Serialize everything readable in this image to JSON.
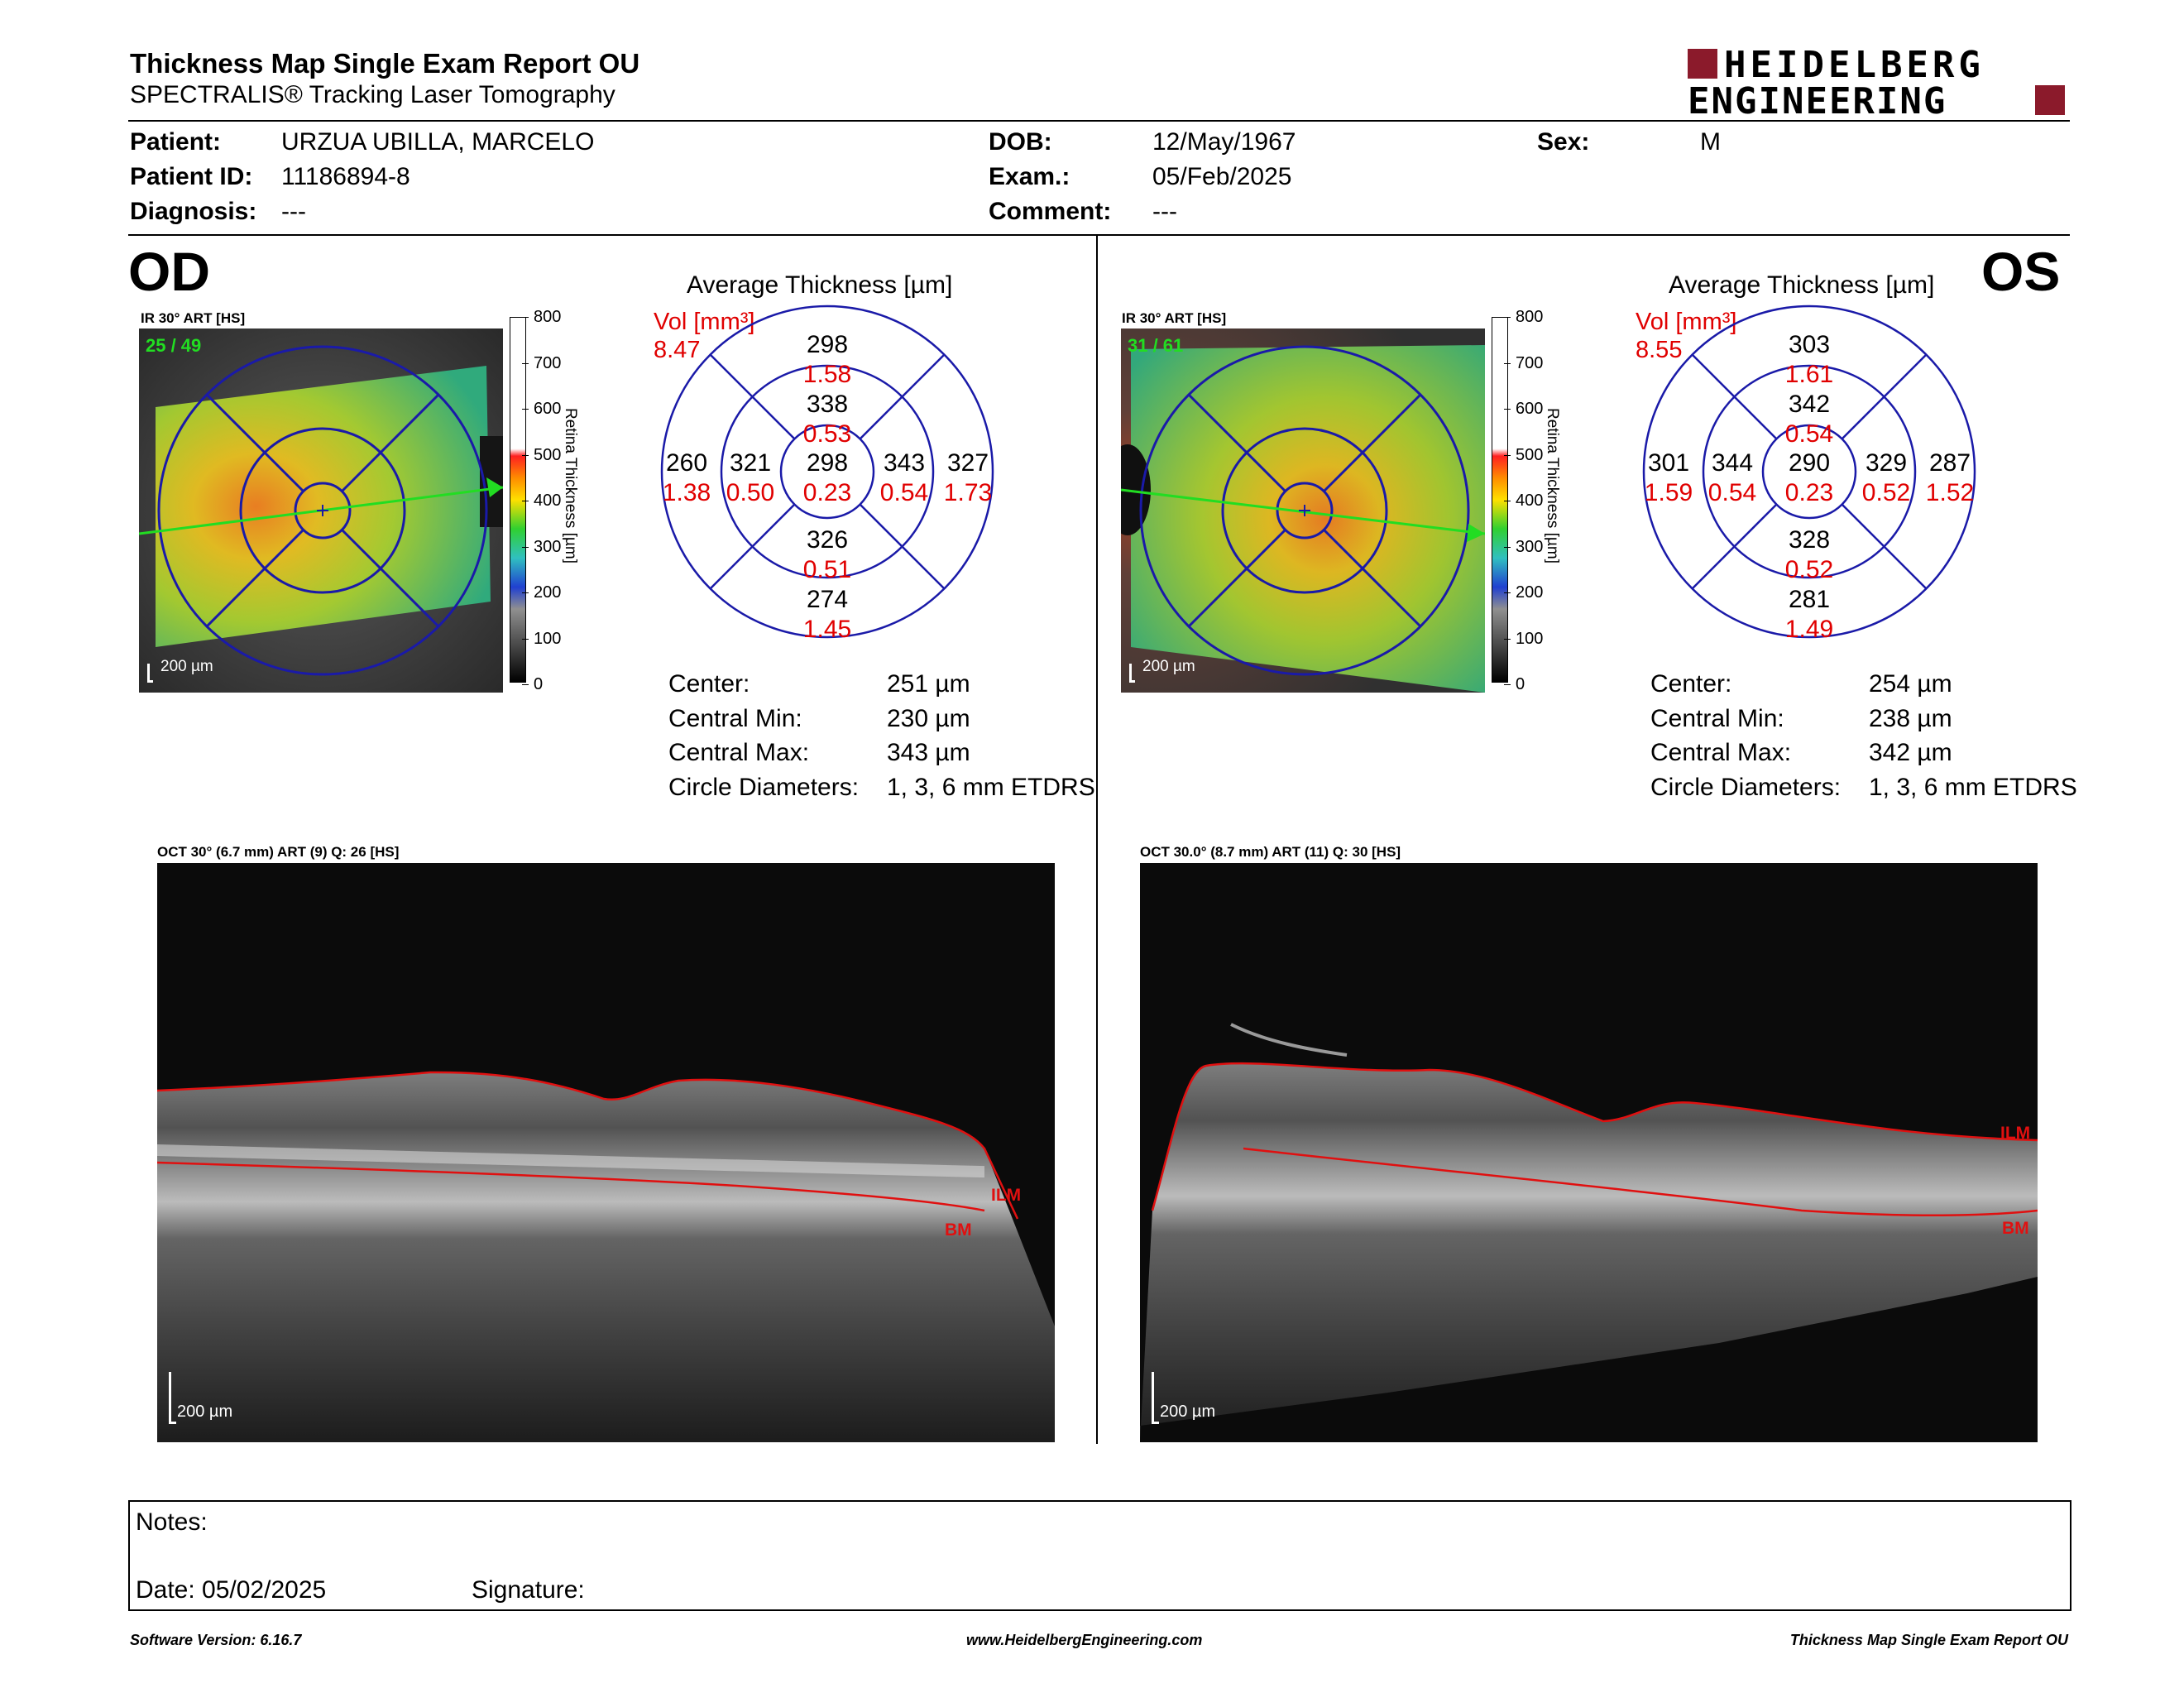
{
  "header": {
    "title": "Thickness Map Single Exam Report OU",
    "subtitle": "SPECTRALIS® Tracking Laser Tomography",
    "logo_line1": "HEIDELBERG",
    "logo_line2": "ENGINEERING",
    "logo_color": "#8b1a2b"
  },
  "patient": {
    "patient_label": "Patient:",
    "patient_value": "URZUA UBILLA, MARCELO",
    "id_label": "Patient ID:",
    "id_value": "11186894-8",
    "diag_label": "Diagnosis:",
    "diag_value": "---",
    "dob_label": "DOB:",
    "dob_value": "12/May/1967",
    "exam_label": "Exam.:",
    "exam_value": "05/Feb/2025",
    "comment_label": "Comment:",
    "comment_value": "---",
    "sex_label": "Sex:",
    "sex_value": "M"
  },
  "od": {
    "eye": "OD",
    "ir_label": "IR 30° ART [HS]",
    "frames": "25 / 49",
    "scale": "200 µm",
    "oct_label": "OCT 30° (6.7 mm) ART (9) Q: 26 [HS]",
    "oct_scale": "200 µm",
    "ilm": "ILM",
    "bm": "BM",
    "avg_title": "Average Thickness [µm]",
    "vol_label": "Vol [mm³]",
    "vol_value": "8.47",
    "grid": {
      "outer_top": "298",
      "outer_top_vol": "1.58",
      "inner_top": "338",
      "inner_top_vol": "0.53",
      "outer_left": "260",
      "outer_left_vol": "1.38",
      "inner_left": "321",
      "inner_left_vol": "0.50",
      "center": "298",
      "center_vol": "0.23",
      "inner_right": "343",
      "inner_right_vol": "0.54",
      "outer_right": "327",
      "outer_right_vol": "1.73",
      "inner_bottom": "326",
      "inner_bottom_vol": "0.51",
      "outer_bottom": "274",
      "outer_bottom_vol": "1.45"
    },
    "stats": {
      "center_label": "Center:",
      "center_value": "251 µm",
      "min_label": "Central Min:",
      "min_value": "230 µm",
      "max_label": "Central Max:",
      "max_value": "343 µm",
      "diam_label": "Circle Diameters:",
      "diam_value": "1, 3, 6 mm ETDRS"
    }
  },
  "os": {
    "eye": "OS",
    "ir_label": "IR 30° ART [HS]",
    "frames": "31 / 61",
    "scale": "200 µm",
    "oct_label": "OCT 30.0° (8.7 mm) ART (11) Q: 30 [HS]",
    "oct_scale": "200 µm",
    "ilm": "ILM",
    "bm": "BM",
    "avg_title": "Average Thickness [µm]",
    "vol_label": "Vol [mm³]",
    "vol_value": "8.55",
    "grid": {
      "outer_top": "303",
      "outer_top_vol": "1.61",
      "inner_top": "342",
      "inner_top_vol": "0.54",
      "outer_left": "301",
      "outer_left_vol": "1.59",
      "inner_left": "344",
      "inner_left_vol": "0.54",
      "center": "290",
      "center_vol": "0.23",
      "inner_right": "329",
      "inner_right_vol": "0.52",
      "outer_right": "287",
      "outer_right_vol": "1.52",
      "inner_bottom": "328",
      "inner_bottom_vol": "0.52",
      "outer_bottom": "281",
      "outer_bottom_vol": "1.49"
    },
    "stats": {
      "center_label": "Center:",
      "center_value": "254 µm",
      "min_label": "Central Min:",
      "min_value": "238 µm",
      "max_label": "Central Max:",
      "max_value": "342 µm",
      "diam_label": "Circle Diameters:",
      "diam_value": "1, 3, 6 mm ETDRS"
    }
  },
  "colorbar": {
    "ticks": [
      "800",
      "700",
      "600",
      "500",
      "400",
      "300",
      "200",
      "100",
      "0"
    ],
    "label": "Retina Thickness [µm]"
  },
  "notes": {
    "notes_label": "Notes:",
    "date_label": "Date: 05/02/2025",
    "signature_label": "Signature:"
  },
  "footer": {
    "software": "Software Version: 6.16.7",
    "website": "www.HeidelbergEngineering.com",
    "report": "Thickness Map Single Exam Report OU"
  },
  "colors": {
    "value_black": "#000000",
    "value_red": "#e00000",
    "grid_blue": "#1a1aa8",
    "scan_green": "#22dd22",
    "layer_red": "#e01010"
  }
}
